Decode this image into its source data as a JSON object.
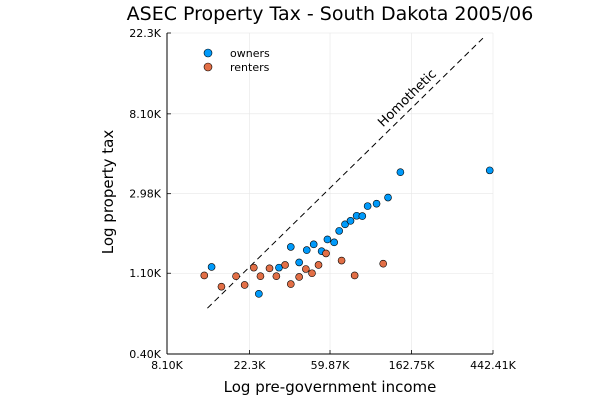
{
  "chart_data": {
    "type": "scatter",
    "title": "ASEC Property Tax - South Dakota 2005/06",
    "xlabel": "Log pre-government income",
    "ylabel": "Log property tax",
    "x_scale": "log",
    "y_scale": "log",
    "xlim": [
      8100,
      442410
    ],
    "ylim": [
      400,
      22300
    ],
    "x_ticks": [
      8100,
      22300,
      59870,
      162750,
      442410
    ],
    "x_tick_labels": [
      "8.10K",
      "22.3K",
      "59.87K",
      "162.75K",
      "442.41K"
    ],
    "y_ticks": [
      400,
      1100,
      2980,
      8100,
      22300
    ],
    "y_tick_labels": [
      "0.40K",
      "1.10K",
      "2.98K",
      "8.10K",
      "22.3K"
    ],
    "grid": true,
    "legend_position": "top-left",
    "colors": {
      "owners": "#009AFA",
      "renterss": "#E26F46"
    },
    "series": [
      {
        "name": "owners",
        "color": "#009AFA",
        "points": [
          [
            14000,
            1190
          ],
          [
            25000,
            850
          ],
          [
            32000,
            1180
          ],
          [
            37000,
            1530
          ],
          [
            41000,
            1260
          ],
          [
            45000,
            1470
          ],
          [
            49000,
            1580
          ],
          [
            54000,
            1450
          ],
          [
            58000,
            1680
          ],
          [
            63000,
            1620
          ],
          [
            67000,
            1870
          ],
          [
            72000,
            2030
          ],
          [
            77000,
            2120
          ],
          [
            83000,
            2260
          ],
          [
            89000,
            2250
          ],
          [
            95000,
            2550
          ],
          [
            106000,
            2630
          ],
          [
            122000,
            2840
          ],
          [
            142000,
            3900
          ],
          [
            425000,
            3990
          ]
        ]
      },
      {
        "name": "renters",
        "color": "#E26F46",
        "points": [
          [
            12800,
            1070
          ],
          [
            15800,
            930
          ],
          [
            18900,
            1060
          ],
          [
            21000,
            950
          ],
          [
            23500,
            1180
          ],
          [
            25500,
            1060
          ],
          [
            28500,
            1170
          ],
          [
            31000,
            1060
          ],
          [
            34500,
            1220
          ],
          [
            37000,
            960
          ],
          [
            41000,
            1050
          ],
          [
            44500,
            1160
          ],
          [
            48000,
            1100
          ],
          [
            52000,
            1220
          ],
          [
            57000,
            1410
          ],
          [
            69000,
            1290
          ],
          [
            81000,
            1070
          ],
          [
            115000,
            1240
          ]
        ]
      }
    ],
    "reference_line": {
      "label": "Homothetic",
      "style": "dashed",
      "from": [
        13300,
        710
      ],
      "to": [
        391000,
        20900
      ]
    }
  }
}
